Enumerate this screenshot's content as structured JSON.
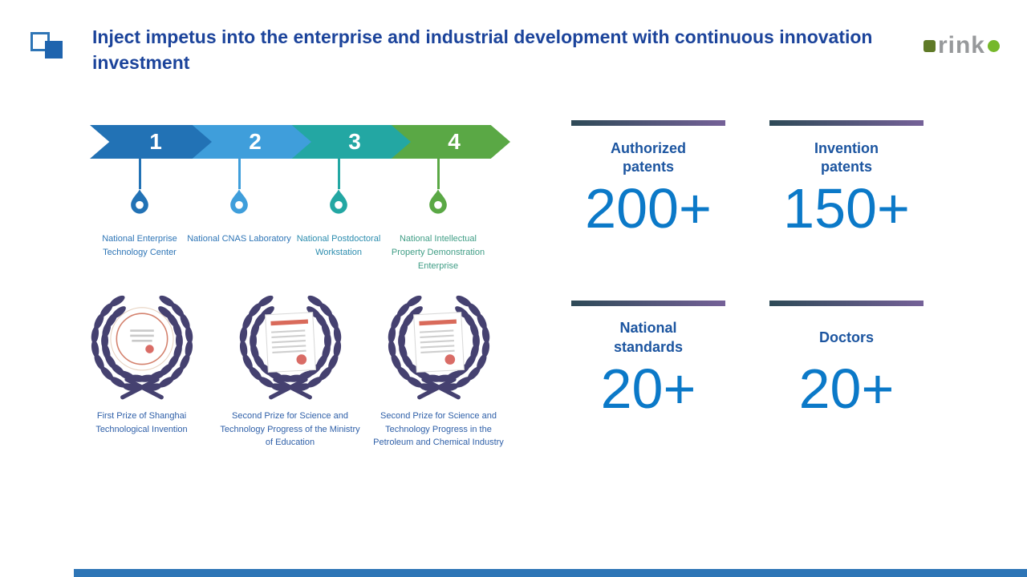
{
  "header": {
    "title": "Inject impetus into the enterprise and industrial development with continuous innovation investment",
    "brand_text": "rink"
  },
  "timeline": {
    "steps": [
      {
        "number": "1",
        "label": "National Enterprise Technology Center",
        "color": "#2272b5"
      },
      {
        "number": "2",
        "label": "National CNAS Laboratory",
        "color": "#3f9edb"
      },
      {
        "number": "3",
        "label": "National Postdoctoral Workstation",
        "color": "#23a7a3"
      },
      {
        "number": "4",
        "label": "National Intellectual Property Demonstration Enterprise",
        "color": "#5aa845"
      }
    ]
  },
  "awards": [
    {
      "label": "First Prize of Shanghai Technological Invention",
      "cert": "circle"
    },
    {
      "label": "Second Prize for Science and Technology Progress of the Ministry of Education",
      "cert": "doc"
    },
    {
      "label": "Second Prize for Science and Technology Progress in the Petroleum and Chemical Industry",
      "cert": "doc"
    }
  ],
  "stats": [
    {
      "label": "Authorized patents",
      "value": "200+"
    },
    {
      "label": "Invention patents",
      "value": "150+"
    },
    {
      "label": "National standards",
      "value": "20+"
    },
    {
      "label": "Doctors",
      "value": "20+"
    }
  ],
  "colors": {
    "title_blue": "#1c449b",
    "stat_label_blue": "#1c55a0",
    "stat_value_blue": "#0b79c8",
    "wreath_purple": "#454170",
    "bottom_bar_blue": "#2e75b6",
    "bar_gradient_left": "#2e4a57",
    "bar_gradient_right": "#756198",
    "brand_green": "#76b82a",
    "brand_gray": "#97999b"
  }
}
